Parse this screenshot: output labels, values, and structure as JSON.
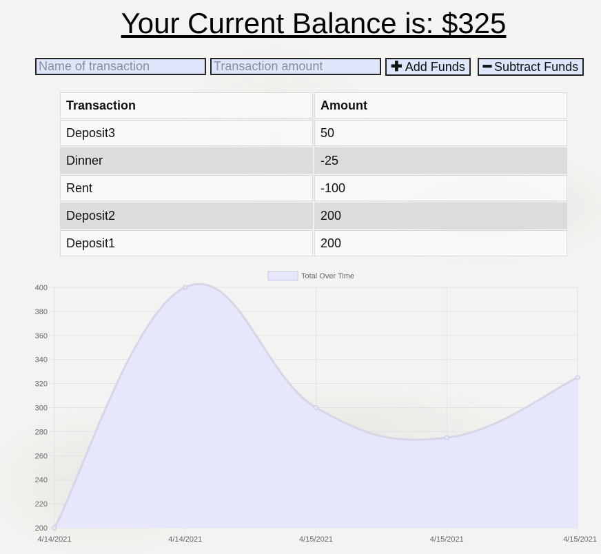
{
  "header": {
    "title": "Your Current Balance is: $325"
  },
  "form": {
    "name_placeholder": "Name of transaction",
    "amount_placeholder": "Transaction amount",
    "add_label": "Add Funds",
    "subtract_label": "Subtract Funds",
    "add_icon": "plus-icon",
    "subtract_icon": "minus-icon"
  },
  "table": {
    "headers": [
      "Transaction",
      "Amount"
    ],
    "rows": [
      [
        "Deposit3",
        "50"
      ],
      [
        "Dinner",
        "-25"
      ],
      [
        "Rent",
        "-100"
      ],
      [
        "Deposit2",
        "200"
      ],
      [
        "Deposit1",
        "200"
      ]
    ]
  },
  "colors": {
    "area_fill": "#e6e6fd",
    "line": "#d6d6e6",
    "input_bg": "#dde6fb",
    "alt_row": "#dcdcdc"
  },
  "chart_data": {
    "type": "area",
    "x": [
      "4/14/2021",
      "4/14/2021",
      "4/15/2021",
      "4/15/2021",
      "4/15/2021"
    ],
    "series": [
      {
        "name": "Total Over Time",
        "values": [
          200,
          400,
          300,
          275,
          325
        ]
      }
    ],
    "ylim": [
      200,
      400
    ],
    "yticks": [
      200,
      220,
      240,
      260,
      280,
      300,
      320,
      340,
      360,
      380,
      400
    ],
    "legend": "top-center",
    "grid": true
  }
}
